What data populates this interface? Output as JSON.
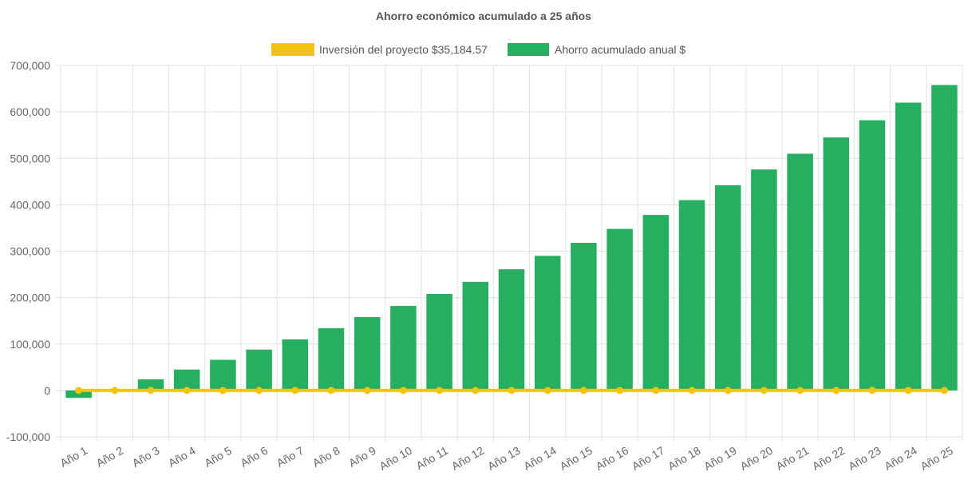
{
  "chart_data": {
    "type": "bar",
    "title": "Ahorro económico acumulado a 25 años",
    "categories": [
      "Año 1",
      "Año 2",
      "Año 3",
      "Año 4",
      "Año 5",
      "Año 6",
      "Año 7",
      "Año 8",
      "Año 9",
      "Año 10",
      "Año 11",
      "Año 12",
      "Año 13",
      "Año 14",
      "Año 15",
      "Año 16",
      "Año 17",
      "Año 18",
      "Año 19",
      "Año 20",
      "Año 21",
      "Año 22",
      "Año 23",
      "Año 24",
      "Año 25"
    ],
    "series": [
      {
        "name": "Inversión del proyecto $35,184.57",
        "type": "line",
        "color": "#f1c40f",
        "values": [
          0,
          0,
          0,
          0,
          0,
          0,
          0,
          0,
          0,
          0,
          0,
          0,
          0,
          0,
          0,
          0,
          0,
          0,
          0,
          0,
          0,
          0,
          0,
          0,
          0
        ]
      },
      {
        "name": "Ahorro acumulado anual $",
        "type": "bar",
        "color": "#27ae60",
        "values": [
          -16000,
          3000,
          24000,
          45000,
          66000,
          88000,
          110000,
          134000,
          158000,
          182000,
          208000,
          234000,
          261000,
          290000,
          318000,
          348000,
          378000,
          410000,
          442000,
          476000,
          510000,
          545000,
          582000,
          620000,
          658000
        ]
      }
    ],
    "yticks": [
      "700,000",
      "600,000",
      "500,000",
      "400,000",
      "300,000",
      "200,000",
      "100,000",
      "0",
      "-100,000"
    ],
    "ylim": [
      -100000,
      700000
    ],
    "grid": true,
    "legend": "top-center"
  }
}
